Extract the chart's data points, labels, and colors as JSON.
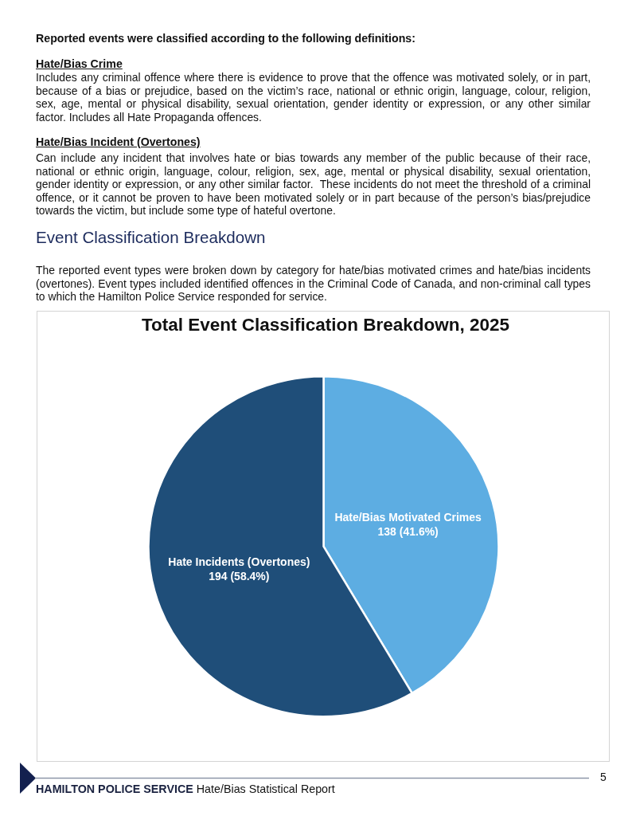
{
  "chart_data": {
    "type": "pie",
    "title": "Total Event Classification Breakdown, 2025",
    "categories": [
      "Hate/Bias Motivated Crimes",
      "Hate Incidents (Overtones)"
    ],
    "values": [
      138,
      194
    ],
    "colors": [
      "#5dade2",
      "#1f4e79"
    ],
    "value_labels": [
      "138 (41.6%)",
      "194 (58.4%)"
    ],
    "annotations": [
      "Reported events were classified according to the following definitions:",
      "Hate/Bias Crime",
      "Includes any criminal offence where there is evidence to prove that the offence was motivated solely, or in part, because of a bias or prejudice, based on the victim’s race, national or ethnic origin, language, colour, religion, sex, age, mental or physical disability, sexual orientation, gender identity or expression, or any other similar factor. Includes all Hate Propaganda offences.",
      "Hate/Bias Incident (Overtones)",
      "Can include any incident that involves hate or bias towards any member of the public because of their race, national or ethnic origin, language, colour, religion, sex, age, mental or physical disability, sexual orientation, gender identity or expression, or any other similar factor.  These incidents do not meet the threshold of a criminal offence, or it cannot be proven to have been motivated solely or in part because of the person’s bias/prejudice towards the victim, but include some type of hateful overtone.",
      "Event Classification Breakdown",
      "The reported event types were broken down by category for hate/bias motivated crimes and hate/bias incidents (overtones). Event types included identified offences in the Criminal Code of Canada, and non-criminal call types to which the Hamilton Police Service responded for service.",
      "HAMILTON POLICE SERVICE",
      "Hate/Bias Statistical Report",
      "5"
    ]
  }
}
